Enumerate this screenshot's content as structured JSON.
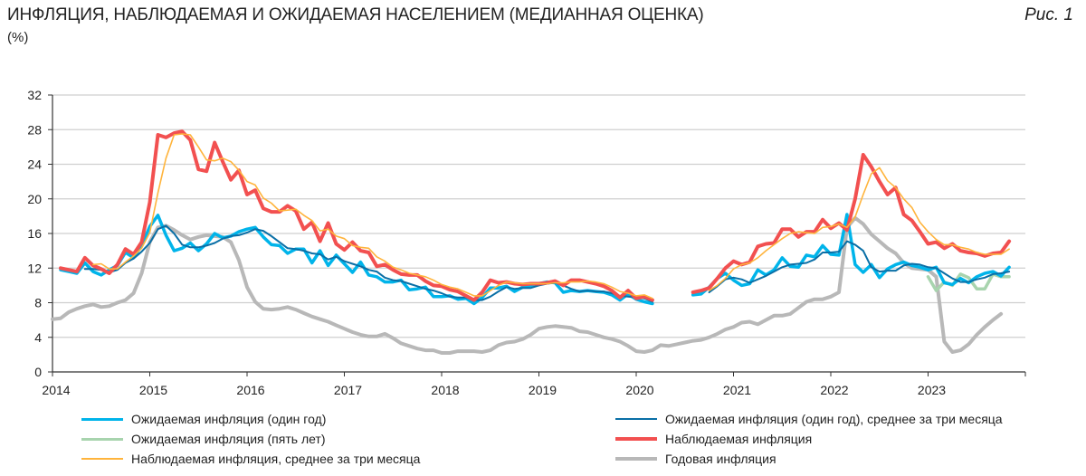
{
  "header": {
    "title": "ИНФЛЯЦИЯ, НАБЛЮДАЕМАЯ И ОЖИДАЕМАЯ НАСЕЛЕНИЕМ (МЕДИАННАЯ ОЦЕНКА)",
    "unit": "(%)",
    "figure_label": "Рис. 1"
  },
  "chart_data": {
    "type": "line",
    "title": "ИНФЛЯЦИЯ, НАБЛЮДАЕМАЯ И ОЖИДАЕМАЯ НАСЕЛЕНИЕМ (МЕДИАННАЯ ОЦЕНКА)",
    "ylabel": "(%)",
    "xlabel": "",
    "ylim": [
      0,
      32
    ],
    "yticks": [
      "0",
      "4",
      "8",
      "12",
      "16",
      "20",
      "24",
      "28",
      "32"
    ],
    "xlim": [
      "2014-01",
      "2024-01"
    ],
    "xticks": [
      "2014",
      "2015",
      "2016",
      "2017",
      "2018",
      "2019",
      "2020",
      "2021",
      "2022",
      "2023"
    ],
    "grid": "horizontal",
    "legend": "bottom",
    "x": [
      "2014-01",
      "2014-02",
      "2014-03",
      "2014-04",
      "2014-05",
      "2014-06",
      "2014-07",
      "2014-08",
      "2014-09",
      "2014-10",
      "2014-11",
      "2014-12",
      "2015-01",
      "2015-02",
      "2015-03",
      "2015-04",
      "2015-05",
      "2015-06",
      "2015-07",
      "2015-08",
      "2015-09",
      "2015-10",
      "2015-11",
      "2015-12",
      "2016-01",
      "2016-02",
      "2016-03",
      "2016-04",
      "2016-05",
      "2016-06",
      "2016-07",
      "2016-08",
      "2016-09",
      "2016-10",
      "2016-11",
      "2016-12",
      "2017-01",
      "2017-02",
      "2017-03",
      "2017-04",
      "2017-05",
      "2017-06",
      "2017-07",
      "2017-08",
      "2017-09",
      "2017-10",
      "2017-11",
      "2017-12",
      "2018-01",
      "2018-02",
      "2018-03",
      "2018-04",
      "2018-05",
      "2018-06",
      "2018-07",
      "2018-08",
      "2018-09",
      "2018-10",
      "2018-11",
      "2018-12",
      "2019-01",
      "2019-02",
      "2019-03",
      "2019-04",
      "2019-05",
      "2019-06",
      "2019-07",
      "2019-08",
      "2019-09",
      "2019-10",
      "2019-11",
      "2019-12",
      "2020-01",
      "2020-02",
      "2020-03",
      "2020-04",
      "2020-05",
      "2020-06",
      "2020-07",
      "2020-08",
      "2020-09",
      "2020-10",
      "2020-11",
      "2020-12",
      "2021-01",
      "2021-02",
      "2021-03",
      "2021-04",
      "2021-05",
      "2021-06",
      "2021-07",
      "2021-08",
      "2021-09",
      "2021-10",
      "2021-11",
      "2021-12",
      "2022-01",
      "2022-02",
      "2022-03",
      "2022-04",
      "2022-05",
      "2022-06",
      "2022-07",
      "2022-08",
      "2022-09",
      "2022-10",
      "2022-11",
      "2022-12",
      "2023-01",
      "2023-02",
      "2023-03",
      "2023-04",
      "2023-05",
      "2023-06",
      "2023-07",
      "2023-08",
      "2023-09",
      "2023-10",
      "2023-11",
      "2023-12"
    ],
    "series": [
      {
        "name": "Годовая инфляция",
        "color": "#b8b8b8",
        "width": 4,
        "values": [
          6.1,
          6.2,
          6.9,
          7.3,
          7.6,
          7.8,
          7.5,
          7.6,
          8.0,
          8.3,
          9.1,
          11.4,
          15.0,
          16.7,
          16.9,
          16.4,
          15.8,
          15.3,
          15.6,
          15.8,
          15.7,
          15.6,
          15.0,
          12.9,
          9.8,
          8.1,
          7.3,
          7.2,
          7.3,
          7.5,
          7.2,
          6.8,
          6.4,
          6.1,
          5.8,
          5.4,
          5.0,
          4.6,
          4.3,
          4.1,
          4.1,
          4.4,
          3.9,
          3.3,
          3.0,
          2.7,
          2.5,
          2.5,
          2.2,
          2.2,
          2.4,
          2.4,
          2.4,
          2.3,
          2.5,
          3.1,
          3.4,
          3.5,
          3.8,
          4.3,
          5.0,
          5.2,
          5.3,
          5.2,
          5.1,
          4.7,
          4.6,
          4.3,
          4.0,
          3.8,
          3.5,
          3.0,
          2.4,
          2.3,
          2.5,
          3.1,
          3.0,
          3.2,
          3.4,
          3.6,
          3.7,
          4.0,
          4.4,
          4.9,
          5.2,
          5.7,
          5.8,
          5.5,
          6.0,
          6.5,
          6.5,
          6.7,
          7.4,
          8.1,
          8.4,
          8.4,
          8.7,
          9.2,
          16.7,
          17.8,
          17.1,
          15.9,
          15.1,
          14.3,
          13.7,
          12.6,
          12.0,
          11.9,
          11.8,
          11.0,
          3.5,
          2.3,
          2.5,
          3.2,
          4.3,
          5.2,
          6.0,
          6.7,
          null,
          null
        ]
      },
      {
        "name": "Ожидаемая инфляция (пять лет)",
        "color": "#a8d4ae",
        "width": 3.5,
        "values": [
          null,
          null,
          null,
          null,
          null,
          null,
          null,
          null,
          null,
          null,
          null,
          null,
          null,
          null,
          null,
          null,
          null,
          null,
          null,
          null,
          null,
          null,
          null,
          null,
          null,
          null,
          null,
          null,
          null,
          null,
          null,
          null,
          null,
          null,
          null,
          null,
          null,
          null,
          null,
          null,
          null,
          null,
          null,
          null,
          null,
          null,
          null,
          null,
          null,
          null,
          null,
          null,
          null,
          null,
          null,
          null,
          null,
          null,
          null,
          null,
          null,
          null,
          null,
          null,
          null,
          null,
          null,
          null,
          null,
          null,
          null,
          null,
          null,
          null,
          null,
          null,
          null,
          null,
          null,
          null,
          null,
          null,
          null,
          null,
          null,
          null,
          null,
          null,
          null,
          null,
          null,
          null,
          null,
          null,
          null,
          null,
          null,
          null,
          null,
          null,
          null,
          null,
          null,
          null,
          null,
          null,
          null,
          null,
          11.0,
          9.4,
          10.4,
          10.0,
          11.3,
          10.9,
          9.6,
          9.6,
          11.3,
          11.0,
          11.0,
          null
        ]
      },
      {
        "name": "Ожидаемая инфляция (один год)",
        "color": "#00b4ea",
        "width": 3.5,
        "values": [
          null,
          11.8,
          11.6,
          11.4,
          12.6,
          11.6,
          11.2,
          11.8,
          12.3,
          13.8,
          13.2,
          14.6,
          16.8,
          18.1,
          15.8,
          14.0,
          14.3,
          14.9,
          14.0,
          14.8,
          16.0,
          15.5,
          15.7,
          16.2,
          16.5,
          16.7,
          15.6,
          14.7,
          14.6,
          13.7,
          14.2,
          14.2,
          12.6,
          14.0,
          12.3,
          13.5,
          12.5,
          11.5,
          12.7,
          11.2,
          11.0,
          10.4,
          10.4,
          10.6,
          9.5,
          9.6,
          9.8,
          8.7,
          8.7,
          8.8,
          8.4,
          8.5,
          7.9,
          8.6,
          9.7,
          9.7,
          9.9,
          9.3,
          9.8,
          10.0,
          10.2,
          10.4,
          10.3,
          9.2,
          9.4,
          9.3,
          9.4,
          9.3,
          9.2,
          8.9,
          8.3,
          9.0,
          8.4,
          8.1,
          7.9,
          null,
          null,
          null,
          null,
          8.9,
          9.0,
          9.8,
          10.8,
          11.4,
          10.6,
          10.0,
          10.2,
          11.8,
          11.2,
          11.8,
          13.2,
          12.2,
          12.1,
          13.5,
          13.3,
          14.6,
          13.6,
          13.5,
          18.2,
          12.4,
          11.5,
          12.4,
          10.9,
          11.9,
          12.4,
          12.7,
          12.3,
          12.1,
          11.8,
          12.1,
          10.3,
          10.1,
          10.8,
          10.3,
          11.0,
          11.4,
          11.6,
          11.1,
          12.1,
          null
        ]
      },
      {
        "name": "Ожидаемая инфляция (один год), среднее за три месяца",
        "color": "#0a6fa6",
        "width": 2,
        "values": [
          null,
          null,
          null,
          null,
          11.9,
          11.9,
          11.8,
          11.5,
          11.8,
          12.6,
          13.1,
          13.9,
          14.9,
          16.5,
          16.9,
          16.0,
          14.7,
          14.4,
          14.4,
          14.6,
          14.9,
          15.4,
          15.7,
          15.8,
          16.1,
          16.5,
          16.3,
          15.7,
          15.0,
          14.3,
          14.2,
          14.0,
          13.7,
          13.6,
          13.0,
          13.3,
          12.8,
          12.5,
          12.2,
          11.8,
          11.6,
          10.9,
          10.6,
          10.5,
          10.2,
          9.9,
          9.6,
          9.4,
          9.1,
          8.7,
          8.6,
          8.6,
          8.3,
          8.3,
          8.7,
          9.3,
          9.8,
          9.6,
          9.7,
          9.7,
          10.0,
          10.2,
          10.3,
          10.0,
          9.6,
          9.3,
          9.4,
          9.3,
          9.3,
          9.1,
          8.8,
          8.7,
          8.6,
          8.5,
          8.1,
          null,
          null,
          null,
          null,
          null,
          null,
          9.2,
          9.9,
          10.7,
          10.9,
          10.7,
          10.3,
          10.7,
          11.1,
          11.6,
          12.1,
          12.4,
          12.5,
          12.6,
          13.0,
          13.8,
          13.8,
          13.9,
          15.1,
          14.7,
          14.0,
          12.1,
          11.6,
          11.7,
          11.7,
          12.3,
          12.5,
          12.4,
          12.1,
          12.0,
          11.4,
          10.8,
          10.4,
          10.4,
          10.7,
          10.9,
          11.3,
          11.4,
          11.6,
          null
        ]
      },
      {
        "name": "Наблюдаемая инфляция",
        "color": "#f25050",
        "width": 4,
        "values": [
          null,
          12.0,
          11.8,
          11.6,
          13.2,
          12.3,
          11.9,
          11.4,
          12.4,
          14.2,
          13.6,
          15.0,
          19.6,
          27.4,
          27.1,
          27.6,
          27.8,
          26.8,
          23.4,
          23.2,
          26.5,
          24.3,
          22.2,
          23.3,
          20.5,
          21.0,
          18.9,
          18.5,
          18.5,
          19.2,
          18.6,
          16.5,
          17.3,
          15.1,
          17.2,
          14.8,
          14.1,
          15.0,
          14.0,
          13.8,
          12.2,
          12.4,
          11.8,
          11.3,
          11.2,
          11.2,
          10.5,
          10.0,
          9.9,
          9.5,
          9.3,
          8.8,
          8.3,
          9.2,
          10.6,
          10.3,
          10.4,
          10.2,
          10.1,
          10.2,
          10.2,
          10.3,
          10.5,
          10.0,
          10.6,
          10.6,
          10.4,
          10.2,
          9.9,
          9.4,
          8.6,
          9.4,
          8.5,
          8.7,
          8.3,
          null,
          null,
          null,
          null,
          9.2,
          9.4,
          9.7,
          10.8,
          12.0,
          12.8,
          12.4,
          12.7,
          14.5,
          14.8,
          14.9,
          16.5,
          16.5,
          15.6,
          16.2,
          16.2,
          17.6,
          16.6,
          17.2,
          16.4,
          20.0,
          25.1,
          23.7,
          22.0,
          20.5,
          21.3,
          18.2,
          17.5,
          16.2,
          14.8,
          15.0,
          14.3,
          14.8,
          14.0,
          13.8,
          13.7,
          13.4,
          13.7,
          13.8,
          15.1,
          null
        ]
      },
      {
        "name": "Наблюдаемая инфляция, среднее за три месяца",
        "color": "#ffb43c",
        "width": 1.6,
        "values": [
          null,
          null,
          null,
          null,
          null,
          12.4,
          12.5,
          11.9,
          11.9,
          12.7,
          13.4,
          14.3,
          16.1,
          20.7,
          24.7,
          27.4,
          27.5,
          27.4,
          26.0,
          24.5,
          24.4,
          24.7,
          24.3,
          23.3,
          22.0,
          21.6,
          20.1,
          19.5,
          18.6,
          18.7,
          18.8,
          18.1,
          17.5,
          16.3,
          16.5,
          15.7,
          15.4,
          14.6,
          14.4,
          14.3,
          13.3,
          12.8,
          12.1,
          11.8,
          11.4,
          11.2,
          11.0,
          10.6,
          10.1,
          9.8,
          9.6,
          9.2,
          8.8,
          8.8,
          9.4,
          10.0,
          10.4,
          10.3,
          10.2,
          10.2,
          10.2,
          10.2,
          10.3,
          10.3,
          10.4,
          10.4,
          10.5,
          10.4,
          10.2,
          9.8,
          9.3,
          9.1,
          8.8,
          8.9,
          8.5,
          null,
          null,
          null,
          null,
          null,
          null,
          9.4,
          10.0,
          10.8,
          11.9,
          12.4,
          12.6,
          13.2,
          14.0,
          14.7,
          15.4,
          16.0,
          16.2,
          16.1,
          16.0,
          16.7,
          16.8,
          17.1,
          16.7,
          17.9,
          20.5,
          22.9,
          23.6,
          22.1,
          21.3,
          20.0,
          19.0,
          17.3,
          16.2,
          15.3,
          14.7,
          14.7,
          14.4,
          14.2,
          13.8,
          13.6,
          13.6,
          13.6,
          14.2,
          null
        ]
      }
    ],
    "legend_order": [
      2,
      3,
      1,
      4,
      5,
      0
    ]
  }
}
